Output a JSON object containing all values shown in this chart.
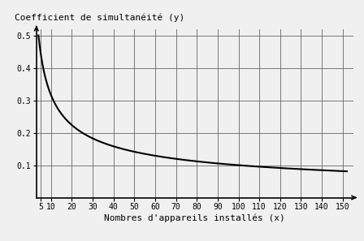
{
  "ylabel": "Coefficient de simultanéité (y)",
  "xlabel": "Nombres d'appareils installés (x)",
  "x_ticks": [
    5,
    10,
    20,
    30,
    40,
    50,
    60,
    70,
    80,
    90,
    100,
    110,
    120,
    130,
    140,
    150
  ],
  "x_tick_labels": [
    "5",
    "10",
    "20",
    "30",
    "40",
    "50",
    "60",
    "70",
    "80",
    "90",
    "100",
    "110",
    "120",
    "130",
    "140",
    "150"
  ],
  "y_ticks": [
    0.1,
    0.2,
    0.3,
    0.4,
    0.5
  ],
  "y_tick_labels": [
    "0.1",
    "0.2",
    "0.3",
    "0.4",
    "0.5"
  ],
  "xlim": [
    3,
    155
  ],
  "ylim": [
    0,
    0.52
  ],
  "line_color": "#000000",
  "line_width": 1.5,
  "background_color": "#f0f0f0",
  "grid_color": "#666666",
  "grid_linewidth": 0.6,
  "ylabel_fontsize": 8,
  "xlabel_fontsize": 8,
  "tick_fontsize": 7
}
